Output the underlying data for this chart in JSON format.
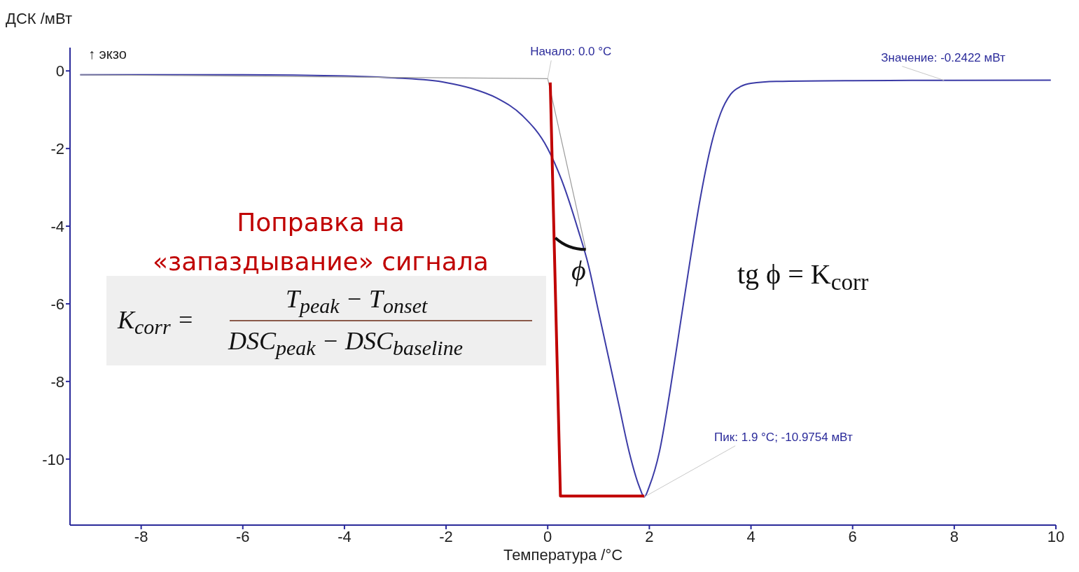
{
  "chart_data": {
    "type": "line",
    "xlabel": "Температура /°C",
    "ylabel": "ДСК /мВт",
    "xlim": [
      -9.4,
      10
    ],
    "xticks": [
      -8,
      -6,
      -4,
      -2,
      0,
      2,
      4,
      6,
      8,
      10
    ],
    "ylim": [
      -11.7,
      0.6
    ],
    "yticks": [
      -10,
      -8,
      -6,
      -4,
      -2,
      0
    ],
    "marker": "none",
    "line_style": "solid",
    "series": [
      {
        "color": "#3b3ba6",
        "x": [
          -9.2,
          -6,
          -4,
          -3,
          -2,
          -1.5,
          -1,
          -0.5,
          0,
          0.3,
          0.6,
          0.8,
          1.0,
          1.2,
          1.4,
          1.6,
          1.8,
          1.9,
          2.0,
          2.2,
          2.4,
          2.6,
          2.8,
          3.0,
          3.2,
          3.4,
          3.6,
          3.8,
          4.0,
          4.5,
          6,
          8,
          9.9
        ],
        "values": [
          -0.1,
          -0.1,
          -0.13,
          -0.18,
          -0.3,
          -0.45,
          -0.7,
          -1.15,
          -2.0,
          -2.9,
          -4.1,
          -5.0,
          -6.2,
          -7.4,
          -8.6,
          -9.8,
          -10.7,
          -10.9754,
          -10.7,
          -9.8,
          -8.3,
          -6.6,
          -4.9,
          -3.3,
          -2.0,
          -1.1,
          -0.6,
          -0.4,
          -0.32,
          -0.27,
          -0.25,
          -0.2422,
          -0.24
        ]
      },
      {
        "type": "line",
        "color": "#9a9a9a",
        "x": [
          -9.2,
          0
        ],
        "values": [
          -0.1,
          -0.2
        ]
      },
      {
        "type": "line",
        "color": "#9a9a9a",
        "x": [
          0,
          0.75
        ],
        "values": [
          -0.2,
          -4.6
        ]
      },
      {
        "type": "line",
        "color": "#c00000",
        "x": [
          0.05,
          0.25,
          1.9
        ],
        "values": [
          -0.3,
          -10.95,
          -10.95
        ]
      }
    ],
    "annotations": [
      {
        "text": "Начало: 0.0 °C",
        "x": 0,
        "y": -0.2
      },
      {
        "text": "Значение: -0.2422 мВт",
        "x": 7.8,
        "y": -0.2422
      },
      {
        "text": "Пик: 1.9 °C; -10.9754 мВт",
        "x": 1.9,
        "y": -10.9754
      },
      "↑ экзо",
      "Поправка на «запаздывание» сигнала",
      "K$_{corr}$ =",
      "T$_{peak}$ − T$_{onset}$",
      "DSC$_{peak}$ − DSC$_{baseline}$",
      "ϕ",
      "tg ϕ = K$_{corr}$"
    ]
  }
}
